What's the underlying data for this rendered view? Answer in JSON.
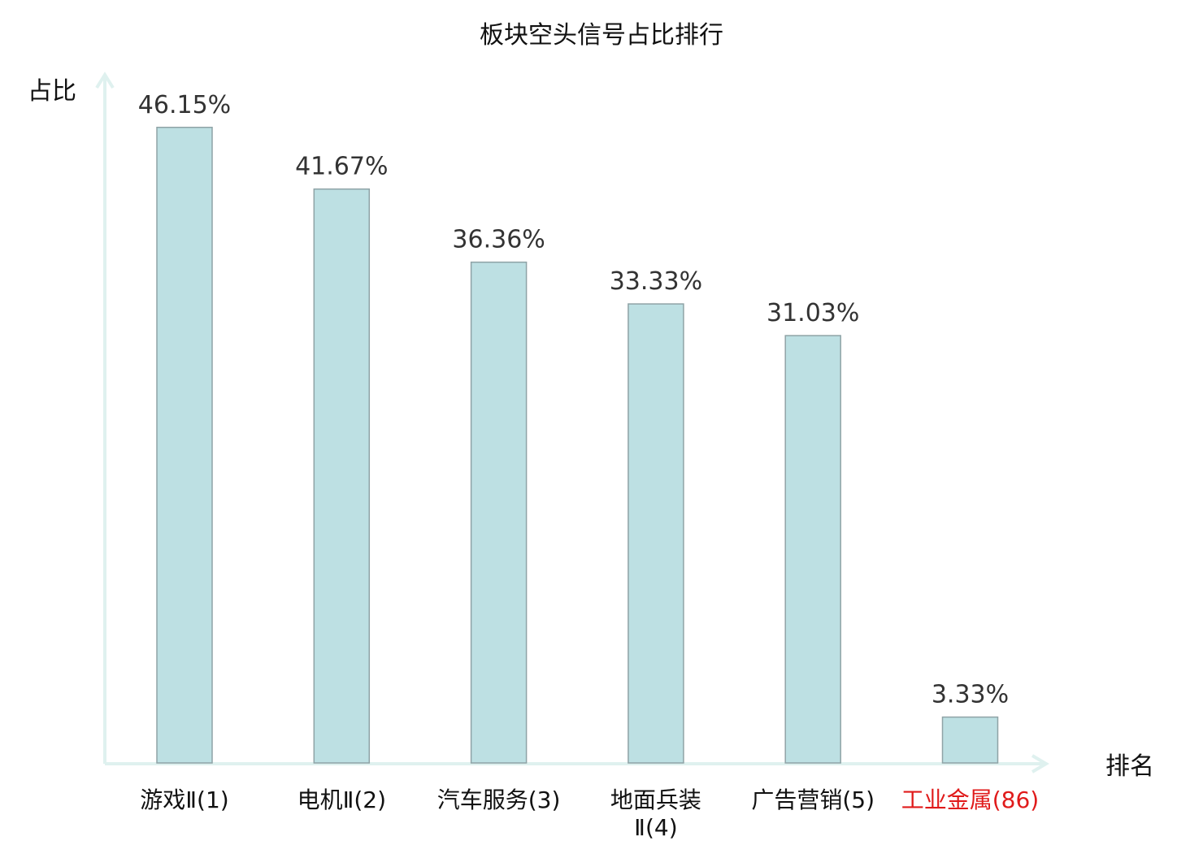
{
  "chart_data": {
    "type": "bar",
    "title": "板块空头信号占比排行",
    "ylabel": "占比",
    "xlabel": "排名",
    "ylim": [
      0,
      50
    ],
    "grid": false,
    "categories": [
      {
        "name_lines": [
          "游戏Ⅱ(1)"
        ],
        "highlight": false
      },
      {
        "name_lines": [
          "电机Ⅱ(2)"
        ],
        "highlight": false
      },
      {
        "name_lines": [
          "汽车服务(3)"
        ],
        "highlight": false
      },
      {
        "name_lines": [
          "地面兵装",
          "Ⅱ(4)"
        ],
        "highlight": false
      },
      {
        "name_lines": [
          "广告营销(5)"
        ],
        "highlight": false
      },
      {
        "name_lines": [
          "工业金属(86)"
        ],
        "highlight": true
      }
    ],
    "values": [
      46.15,
      41.67,
      36.36,
      33.33,
      31.03,
      3.33
    ],
    "value_labels": [
      "46.15%",
      "41.67%",
      "36.36%",
      "33.33%",
      "31.03%",
      "3.33%"
    ],
    "colors": {
      "bar_fill": "#bde0e3",
      "bar_stroke": "#8fa3a6",
      "axis": "#dff1ef",
      "label_text": "#111111",
      "value_text": "#333333",
      "highlight_text": "#e01b1b"
    }
  }
}
